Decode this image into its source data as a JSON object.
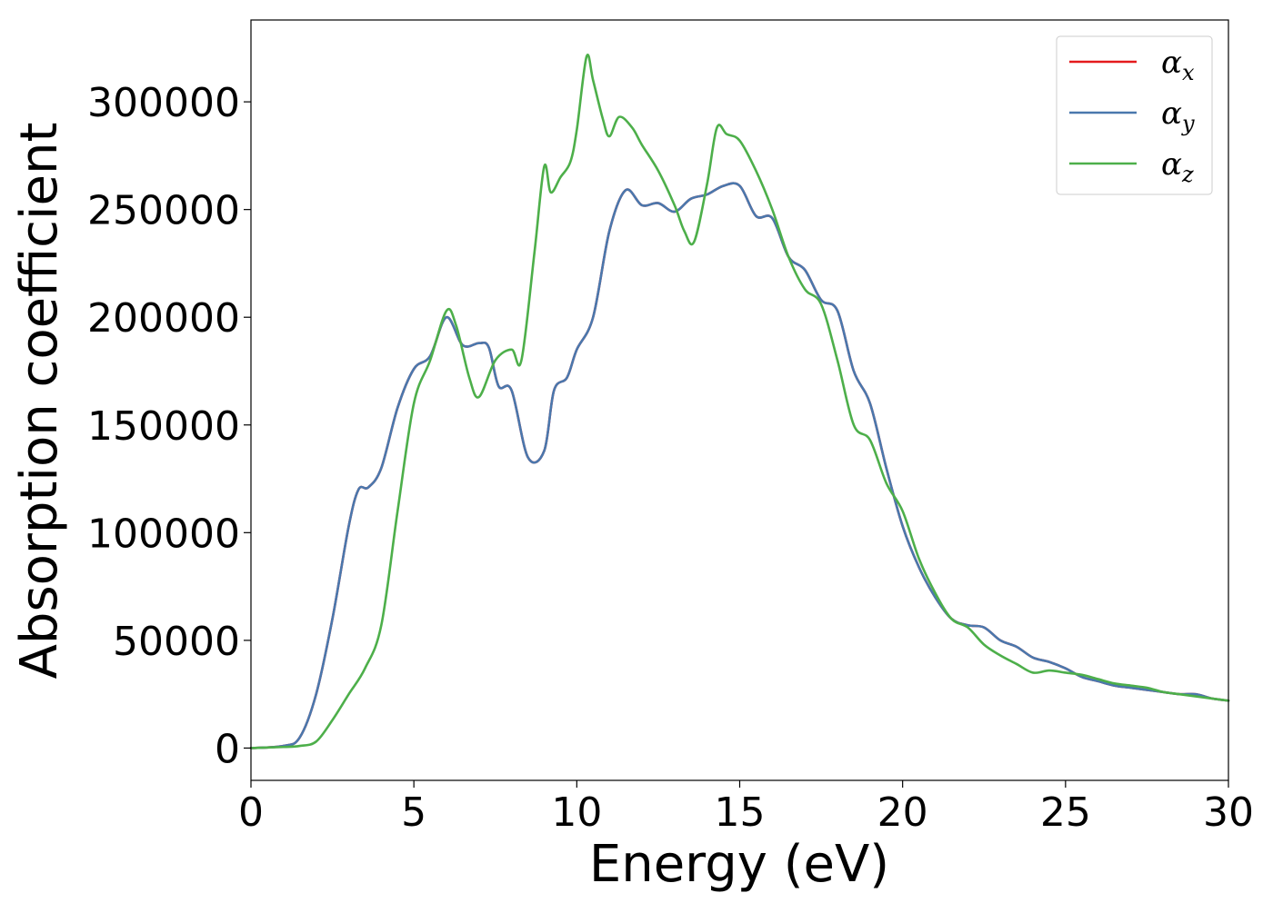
{
  "chart_data": {
    "type": "line",
    "title": "",
    "xlabel": "Energy (eV)",
    "ylabel": "Absorption coefficient",
    "xlim": [
      0,
      30
    ],
    "ylim": [
      -15000,
      338000
    ],
    "xticks": [
      0,
      5,
      10,
      15,
      20,
      25,
      30
    ],
    "yticks": [
      0,
      50000,
      100000,
      150000,
      200000,
      250000,
      300000
    ],
    "grid": false,
    "legend": "top-right",
    "series": [
      {
        "name": "αx",
        "symbol": "α",
        "subscript": "x",
        "color": "#e41a1c",
        "x": [
          0,
          1,
          1.5,
          2,
          2.5,
          3,
          3.3,
          3.6,
          4,
          4.5,
          5,
          5.5,
          6,
          6.5,
          7,
          7.3,
          7.6,
          8,
          8.5,
          9,
          9.3,
          9.7,
          10,
          10.5,
          11,
          11.5,
          12,
          12.5,
          13,
          13.5,
          14,
          14.5,
          15,
          15.5,
          16,
          16.5,
          17,
          17.5,
          18,
          18.5,
          19,
          19.5,
          20,
          20.5,
          21,
          21.5,
          22,
          22.5,
          23,
          23.5,
          24,
          24.5,
          25,
          25.5,
          26,
          26.5,
          27,
          27.5,
          28,
          28.5,
          29,
          29.5,
          30
        ],
        "values": [
          0,
          1000,
          5000,
          25000,
          60000,
          103000,
          120000,
          121000,
          130000,
          158000,
          176000,
          182000,
          200000,
          187000,
          188000,
          186000,
          168000,
          166000,
          135000,
          138000,
          166000,
          172000,
          185000,
          200000,
          240000,
          259000,
          252000,
          253000,
          249000,
          255000,
          257000,
          261000,
          261000,
          247000,
          246000,
          228000,
          222000,
          208000,
          203000,
          175000,
          160000,
          130000,
          103000,
          84000,
          70000,
          60000,
          57000,
          56000,
          50000,
          47000,
          42000,
          40000,
          37000,
          33000,
          31000,
          29000,
          28000,
          27000,
          26000,
          25000,
          25000,
          23000,
          22000
        ]
      },
      {
        "name": "αy",
        "symbol": "α",
        "subscript": "y",
        "color": "#4a78ad",
        "x": [
          0,
          1,
          1.5,
          2,
          2.5,
          3,
          3.3,
          3.6,
          4,
          4.5,
          5,
          5.5,
          6,
          6.5,
          7,
          7.3,
          7.6,
          8,
          8.5,
          9,
          9.3,
          9.7,
          10,
          10.5,
          11,
          11.5,
          12,
          12.5,
          13,
          13.5,
          14,
          14.5,
          15,
          15.5,
          16,
          16.5,
          17,
          17.5,
          18,
          18.5,
          19,
          19.5,
          20,
          20.5,
          21,
          21.5,
          22,
          22.5,
          23,
          23.5,
          24,
          24.5,
          25,
          25.5,
          26,
          26.5,
          27,
          27.5,
          28,
          28.5,
          29,
          29.5,
          30
        ],
        "values": [
          0,
          1000,
          5000,
          25000,
          60000,
          103000,
          120000,
          121000,
          130000,
          158000,
          176000,
          182000,
          200000,
          187000,
          188000,
          186000,
          168000,
          166000,
          135000,
          138000,
          166000,
          172000,
          185000,
          200000,
          240000,
          259000,
          252000,
          253000,
          249000,
          255000,
          257000,
          261000,
          261000,
          247000,
          246000,
          228000,
          222000,
          208000,
          203000,
          175000,
          160000,
          130000,
          103000,
          84000,
          70000,
          60000,
          57000,
          56000,
          50000,
          47000,
          42000,
          40000,
          37000,
          33000,
          31000,
          29000,
          28000,
          27000,
          26000,
          25000,
          25000,
          23000,
          22000
        ]
      },
      {
        "name": "αz",
        "symbol": "α",
        "subscript": "z",
        "color": "#4daf4a",
        "x": [
          0,
          1,
          1.5,
          2,
          2.5,
          3,
          3.5,
          4,
          4.5,
          5,
          5.5,
          6,
          6.3,
          6.7,
          7,
          7.5,
          8,
          8.3,
          8.7,
          9,
          9.2,
          9.5,
          9.8,
          10,
          10.3,
          10.5,
          10.8,
          11,
          11.3,
          11.7,
          12,
          12.5,
          13,
          13.3,
          13.6,
          14,
          14.3,
          14.6,
          15,
          15.5,
          16,
          16.5,
          17,
          17.5,
          18,
          18.5,
          19,
          19.5,
          20,
          20.5,
          21,
          21.5,
          22,
          22.5,
          23,
          23.5,
          24,
          24.5,
          25,
          25.5,
          26,
          26.5,
          27,
          27.5,
          28,
          28.5,
          29,
          29.5,
          30
        ],
        "values": [
          0,
          500,
          1000,
          3000,
          13000,
          25000,
          37000,
          57000,
          110000,
          160000,
          180000,
          203000,
          196000,
          172000,
          163000,
          180000,
          185000,
          180000,
          230000,
          270000,
          258000,
          265000,
          272000,
          287000,
          321000,
          310000,
          292000,
          284000,
          293000,
          288000,
          280000,
          268000,
          252000,
          240000,
          235000,
          262000,
          288000,
          285000,
          282000,
          268000,
          250000,
          228000,
          213000,
          206000,
          180000,
          150000,
          143000,
          123000,
          110000,
          88000,
          72000,
          60000,
          56000,
          48000,
          43000,
          39000,
          35000,
          36000,
          35000,
          34000,
          32000,
          30000,
          29000,
          28000,
          26000,
          25000,
          24000,
          23000,
          22000
        ]
      }
    ]
  }
}
